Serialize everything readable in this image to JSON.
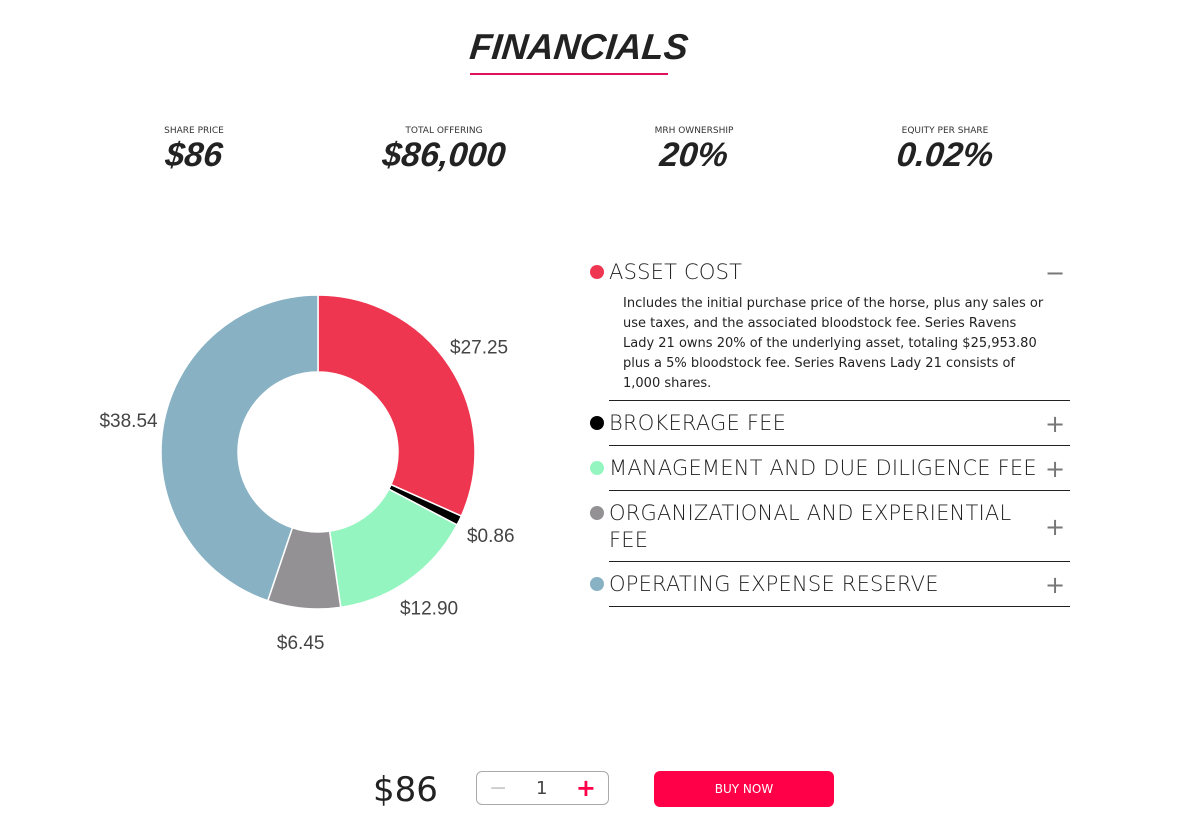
{
  "title": "FINANCIALS",
  "stats": [
    {
      "label": "SHARE PRICE",
      "value": "$86"
    },
    {
      "label": "TOTAL OFFERING",
      "value": "$86,000"
    },
    {
      "label": "MRH OWNERSHIP",
      "value": "20%"
    },
    {
      "label": "EQUITY PER SHARE",
      "value": "0.02%"
    }
  ],
  "chart_data": {
    "type": "pie",
    "donut": true,
    "categories": [
      "Asset Cost",
      "Brokerage Fee",
      "Management and Due Diligence Fee",
      "Organizational and Experiential Fee",
      "Operating Expense Reserve"
    ],
    "values": [
      27.25,
      0.86,
      12.9,
      6.45,
      38.54
    ],
    "labels": [
      "$27.25",
      "$0.86",
      "$12.90",
      "$6.45",
      "$38.54"
    ],
    "colors": [
      "#ee3650",
      "#000000",
      "#95f5c0",
      "#939194",
      "#89b1c4"
    ]
  },
  "accordion": [
    {
      "name": "ASSET COST",
      "color": "#ee3650",
      "toggle": "−",
      "expanded": true,
      "description": "Includes the initial purchase price of the horse, plus any sales or use taxes, and the associated bloodstock fee. Series Ravens Lady 21 owns 20% of the underlying asset, totaling $25,953.80 plus a 5% bloodstock fee. Series Ravens Lady 21 consists of 1,000 shares."
    },
    {
      "name": "BROKERAGE FEE",
      "color": "#000000",
      "toggle": "+"
    },
    {
      "name": "MANAGEMENT AND DUE DILIGENCE FEE",
      "color": "#95f5c0",
      "toggle": "+"
    },
    {
      "name": "ORGANIZATIONAL AND EXPERIENTIAL FEE",
      "color": "#939194",
      "toggle": "+"
    },
    {
      "name": "OPERATING EXPENSE RESERVE",
      "color": "#89b1c4",
      "toggle": "+"
    }
  ],
  "purchase": {
    "price": "$86",
    "quantity": "1",
    "minus": "−",
    "plus": "+",
    "buy_label": "BUY NOW"
  }
}
